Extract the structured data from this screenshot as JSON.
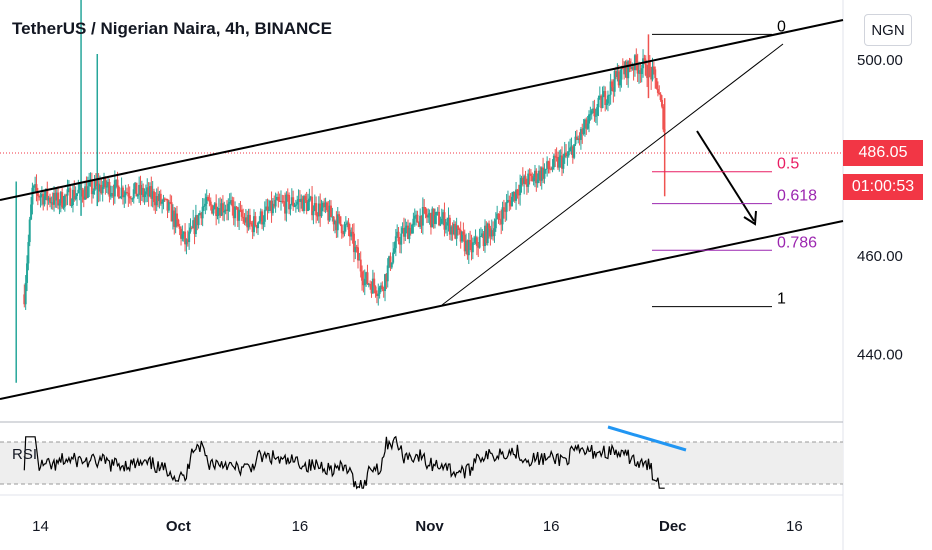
{
  "header": {
    "title": "TetherUS / Nigerian Naira, 4h, BINANCE",
    "currency_button": "NGN"
  },
  "last_price": {
    "value": "486.05",
    "countdown": "01:00:53",
    "color": "#f23645"
  },
  "colors": {
    "up": "#26a69a",
    "down": "#ef5350",
    "fib_red": "#e91e63",
    "fib_purple": "#9c27b0",
    "rsi_trend": "#2196f3"
  },
  "chart_data": {
    "type": "candlestick",
    "title": "TetherUS / Nigerian Naira, 4h, BINANCE",
    "y_tick_labels": [
      "500.00",
      "460.00",
      "440.00"
    ],
    "y_ticks": [
      500,
      460,
      440
    ],
    "x_tick_labels": [
      "14",
      "Oct",
      "16",
      "Nov",
      "16",
      "Dec",
      "16"
    ],
    "x_ticks": [
      "2021-09-14",
      "2021-10-01",
      "2021-10-16",
      "2021-11-01",
      "2021-11-16",
      "2021-12-01",
      "2021-12-16"
    ],
    "price_range": [
      426,
      512
    ],
    "date_range": [
      "2021-09-09",
      "2021-12-22"
    ],
    "price_path": [
      [
        "2021-09-12",
        452
      ],
      [
        "2021-09-13",
        473
      ],
      [
        "2021-09-16",
        471
      ],
      [
        "2021-09-19",
        473
      ],
      [
        "2021-09-22",
        474
      ],
      [
        "2021-09-25",
        473
      ],
      [
        "2021-09-28",
        472
      ],
      [
        "2021-09-30",
        469
      ],
      [
        "2021-10-02",
        462
      ],
      [
        "2021-10-04",
        470
      ],
      [
        "2021-10-07",
        470
      ],
      [
        "2021-10-10",
        466
      ],
      [
        "2021-10-13",
        470
      ],
      [
        "2021-10-16",
        471
      ],
      [
        "2021-10-19",
        469
      ],
      [
        "2021-10-22",
        465
      ],
      [
        "2021-10-24",
        455
      ],
      [
        "2021-10-26",
        453
      ],
      [
        "2021-10-28",
        463
      ],
      [
        "2021-10-31",
        468
      ],
      [
        "2021-11-03",
        467
      ],
      [
        "2021-11-06",
        461
      ],
      [
        "2021-11-09",
        466
      ],
      [
        "2021-11-12",
        474
      ],
      [
        "2021-11-15",
        477
      ],
      [
        "2021-11-18",
        480
      ],
      [
        "2021-11-21",
        488
      ],
      [
        "2021-11-24",
        496
      ],
      [
        "2021-11-26",
        499
      ],
      [
        "2021-11-28",
        498
      ],
      [
        "2021-11-29",
        495
      ],
      [
        "2021-11-30",
        486
      ]
    ],
    "spikes": [
      {
        "date": "2021-09-11",
        "high": 475,
        "low": 434
      },
      {
        "date": "2021-09-19",
        "high": 520,
        "low": 468
      },
      {
        "date": "2021-09-21",
        "high": 501,
        "low": 470
      },
      {
        "date": "2021-11-28",
        "high": 505,
        "low": 492
      },
      {
        "date": "2021-11-30",
        "high": 492,
        "low": 472
      }
    ],
    "fibonacci": [
      {
        "level": "0",
        "price": 505
      },
      {
        "level": "0.5",
        "price": 477
      },
      {
        "level": "0.618",
        "price": 470.5
      },
      {
        "level": "0.786",
        "price": 461
      },
      {
        "level": "1",
        "price": 449.5
      }
    ],
    "rsi": {
      "label": "RSI",
      "upper_band": 70,
      "lower_band": 30
    }
  }
}
